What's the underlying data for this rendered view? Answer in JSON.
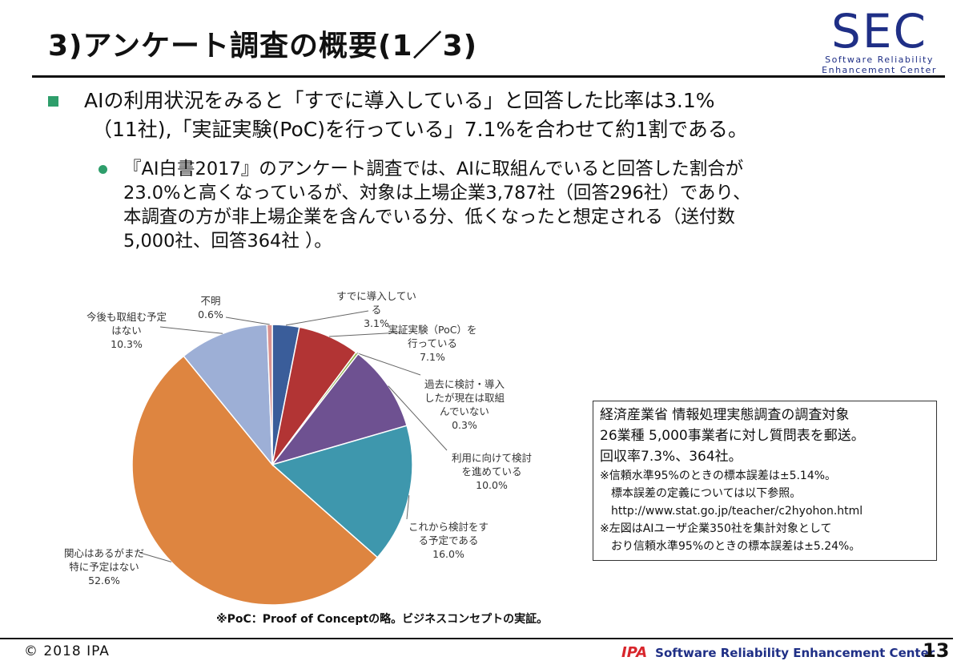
{
  "header": {
    "title": "3)アンケート調査の概要(1／3)",
    "logo_main": "SEC",
    "logo_sub1": "Software Reliability",
    "logo_sub2": "Enhancement Center"
  },
  "bullet1": {
    "line1": "AIの利用状況をみると「すでに導入している」と回答した比率は3.1%",
    "line2": "（11社),「実証実験(PoC)を行っている」7.1%を合わせて約1割である。"
  },
  "bullet2": {
    "line1": "『AI白書2017』のアンケート調査では、AIに取組んでいると回答した割合が",
    "line2": "23.0%と高くなっているが、対象は上場企業3,787社（回答296社）であり、",
    "line3": "本調査の方が非上場企業を含んでいる分、低くなったと想定される（送付数",
    "line4": "5,000社、回答364社 ）。"
  },
  "chart_data": {
    "type": "pie",
    "start": "12 o'clock, clockwise",
    "slices": [
      {
        "label": [
          "すでに導入してい",
          "る"
        ],
        "value": 3.1,
        "value_label": "3.1%",
        "color": "#3a5d9a"
      },
      {
        "label": [
          "実証実験（PoC）を",
          "行っている"
        ],
        "value": 7.1,
        "value_label": "7.1%",
        "color": "#b23434"
      },
      {
        "label": [
          "過去に検討・導入",
          "したが現在は取組",
          "んでいない"
        ],
        "value": 0.3,
        "value_label": "0.3%",
        "color": "#8fb24a"
      },
      {
        "label": [
          "利用に向けて検討",
          "を進めている"
        ],
        "value": 10.0,
        "value_label": "10.0%",
        "color": "#6e5191"
      },
      {
        "label": [
          "これから検討をす",
          "る予定である"
        ],
        "value": 16.0,
        "value_label": "16.0%",
        "color": "#3e97ad"
      },
      {
        "label": [
          "関心はあるがまだ",
          "特に予定はない"
        ],
        "value": 52.6,
        "value_label": "52.6%",
        "color": "#de8540"
      },
      {
        "label": [
          "今後も取組む予定",
          "はない"
        ],
        "value": 10.3,
        "value_label": "10.3%",
        "color": "#9dafd6"
      },
      {
        "label": [
          "不明"
        ],
        "value": 0.6,
        "value_label": "0.6%",
        "color": "#d99290"
      }
    ]
  },
  "infobox": {
    "line1": "経済産業省 情報処理実態調査の調査対象",
    "line2": "26業種 5,000事業者に対し質問表を郵送。",
    "line3": "回収率7.3%、364社。",
    "line4": "※信頼水準95%のときの標本誤差は±5.14%。",
    "line5": "　標本誤差の定義については以下参照。",
    "line6": "　http://www.stat.go.jp/teacher/c2hyohon.html",
    "line7": "※左図はAIユーザ企業350社を集計対象として",
    "line8": "　おり信頼水準95%のときの標本誤差は±5.24%。"
  },
  "note": "※PoC：Proof of Conceptの略。ビジネスコンセプトの実証。",
  "footer": {
    "copyright": "© 2018 IPA",
    "ipa": "IPA",
    "org": "Software Reliability Enhancement Center",
    "page": "13"
  }
}
